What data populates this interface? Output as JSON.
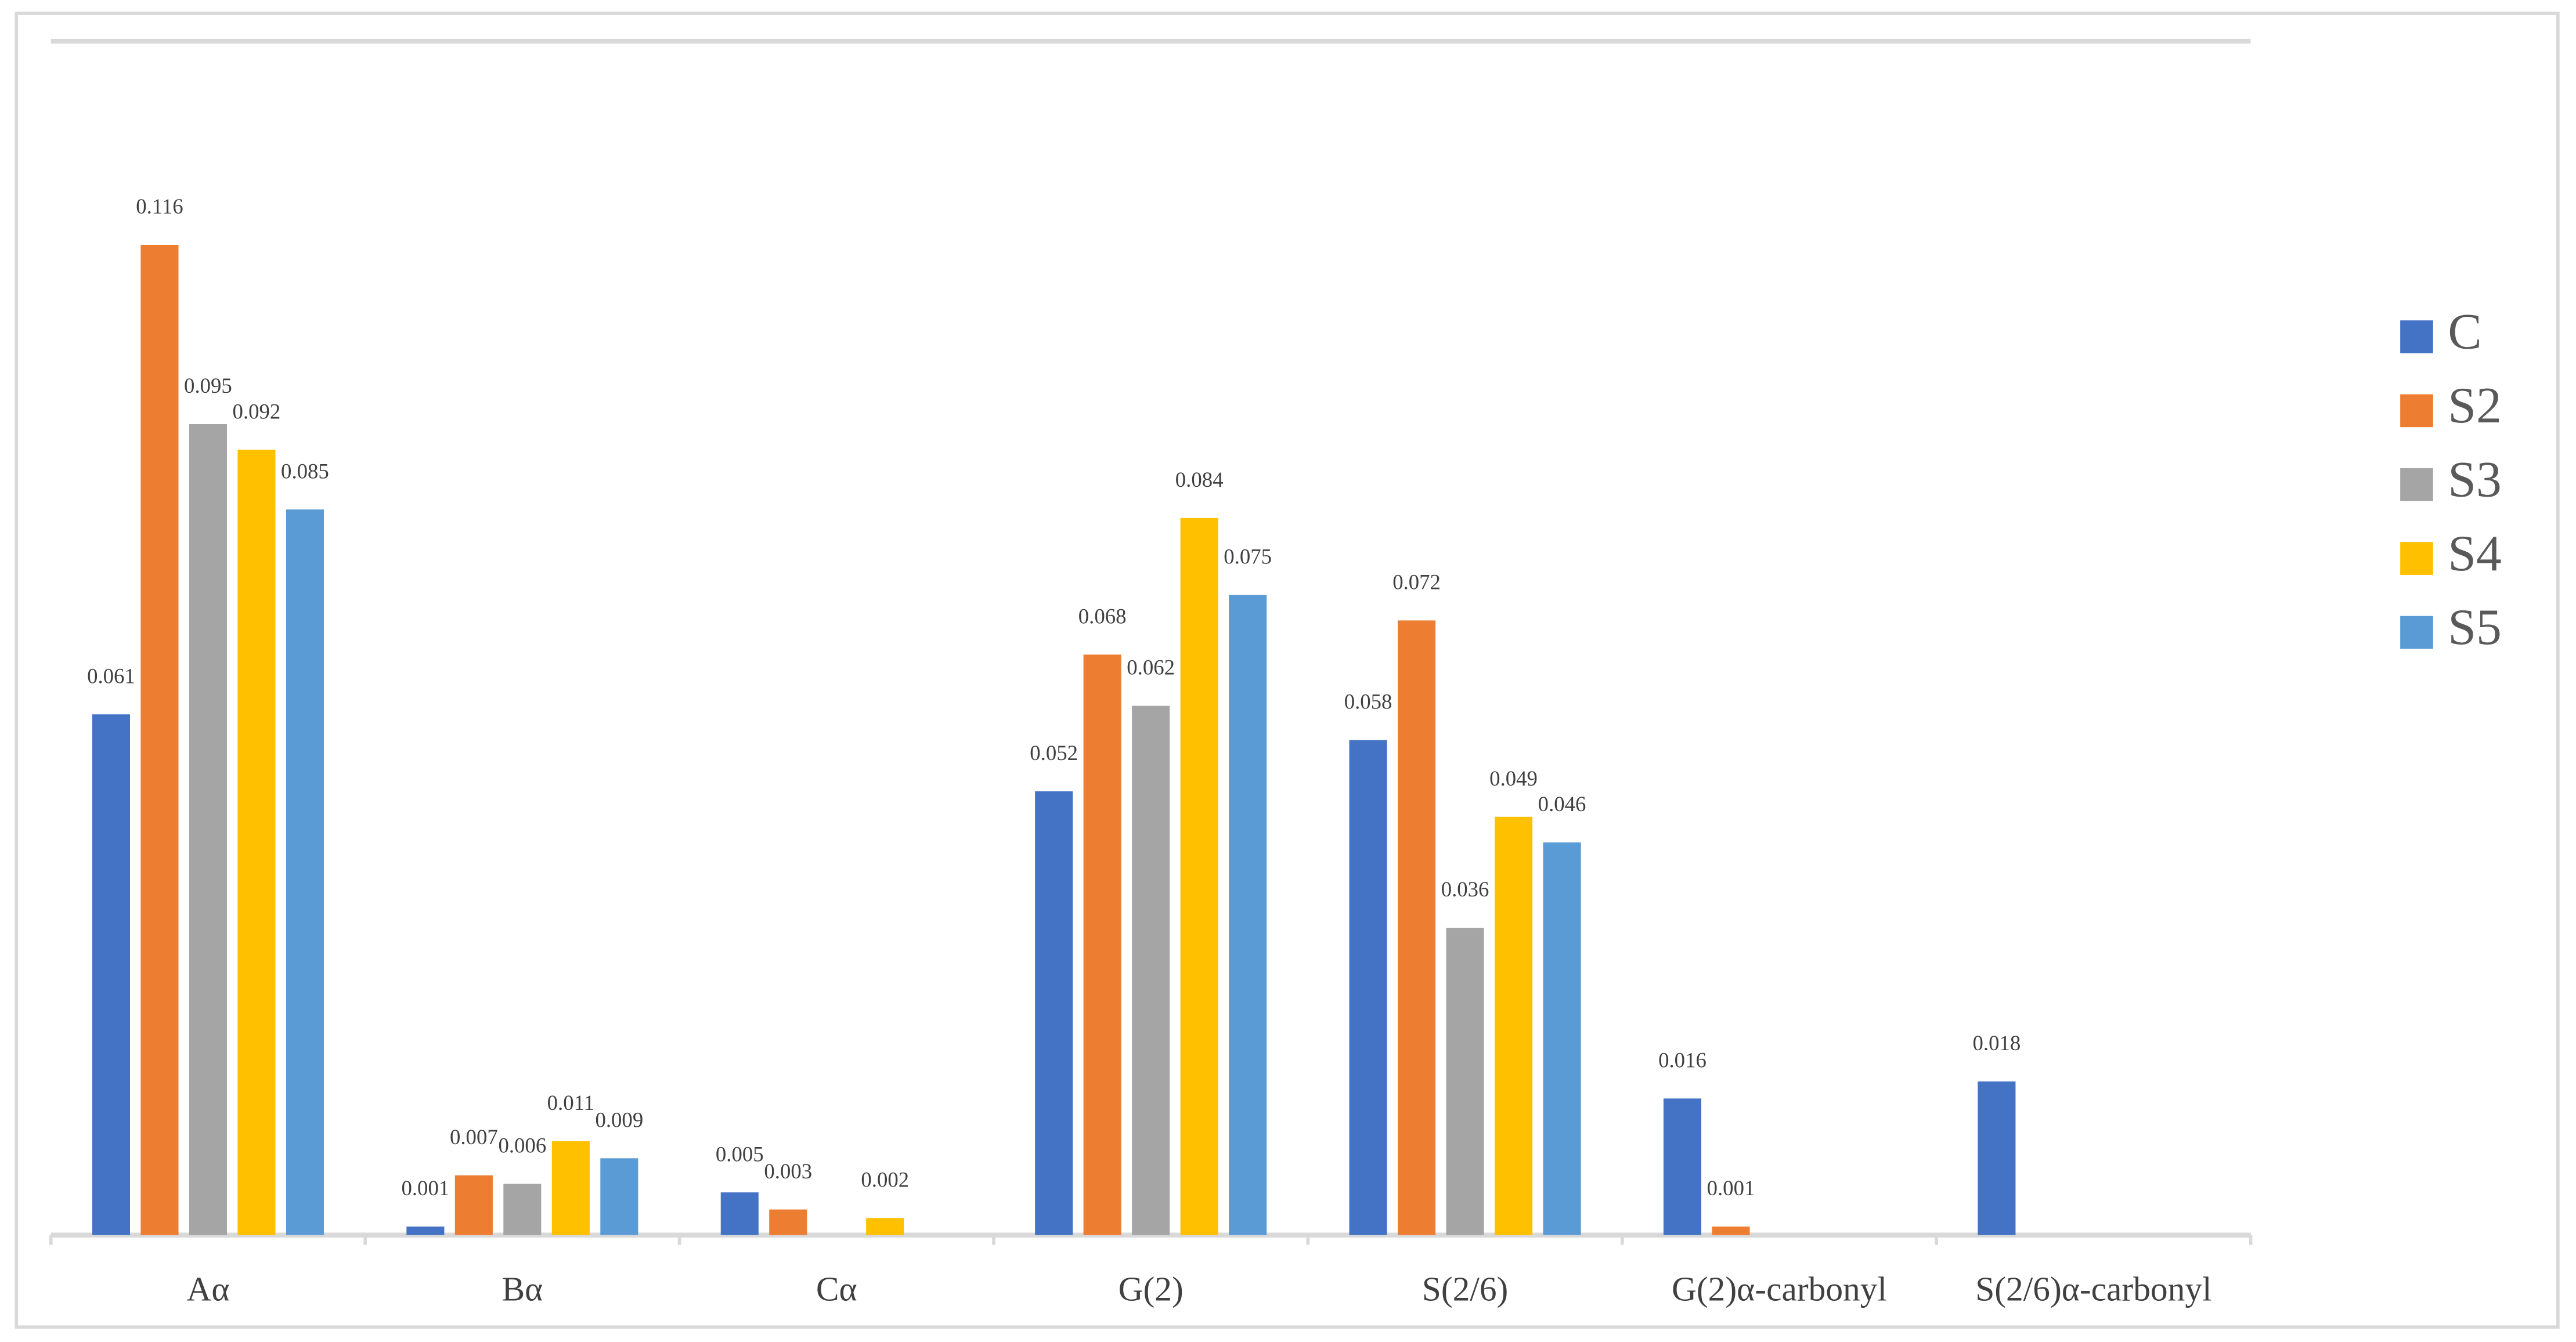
{
  "chart_data": {
    "type": "bar",
    "categories": [
      "Aα",
      "Bα",
      "Cα",
      "G(2)",
      "S(2/6)",
      "G(2)α-carbonyl",
      "S(2/6)α-carbonyl"
    ],
    "series": [
      {
        "name": "C",
        "color": "#4472c4",
        "values": [
          0.061,
          0.001,
          0.005,
          0.052,
          0.058,
          0.016,
          0.018
        ]
      },
      {
        "name": "S2",
        "color": "#ed7d31",
        "values": [
          0.116,
          0.007,
          0.003,
          0.068,
          0.072,
          0.001,
          null
        ]
      },
      {
        "name": "S3",
        "color": "#a5a5a5",
        "values": [
          0.095,
          0.006,
          null,
          0.062,
          0.036,
          null,
          null
        ]
      },
      {
        "name": "S4",
        "color": "#ffc000",
        "values": [
          0.092,
          0.011,
          0.002,
          0.084,
          0.049,
          null,
          null
        ]
      },
      {
        "name": "S5",
        "color": "#5b9bd5",
        "values": [
          0.085,
          0.009,
          null,
          0.075,
          0.046,
          null,
          null
        ]
      }
    ],
    "legend": "right"
  }
}
